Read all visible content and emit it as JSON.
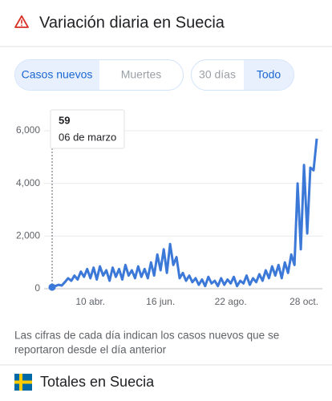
{
  "header": {
    "title": "Variación diaria en Suecia"
  },
  "tabs": {
    "metric": [
      "Casos nuevos",
      "Muertes"
    ],
    "range": [
      "30 días",
      "Todo"
    ]
  },
  "chart_data": {
    "type": "line",
    "categories": [
      "06 de marzo",
      null,
      null,
      null,
      null,
      null,
      null,
      null,
      null,
      null,
      null,
      null,
      "10 abr.",
      null,
      null,
      null,
      null,
      null,
      null,
      null,
      null,
      null,
      null,
      null,
      null,
      null,
      null,
      null,
      null,
      null,
      null,
      null,
      null,
      null,
      "16 jun.",
      null,
      null,
      null,
      null,
      null,
      null,
      null,
      null,
      null,
      null,
      null,
      null,
      null,
      null,
      null,
      null,
      null,
      null,
      null,
      null,
      null,
      "22 ago.",
      null,
      null,
      null,
      null,
      null,
      null,
      null,
      null,
      null,
      null,
      null,
      null,
      null,
      null,
      null,
      null,
      null,
      null,
      null,
      null,
      null,
      null,
      "28 oct.",
      null,
      null,
      null,
      null
    ],
    "series": [
      {
        "name": "Casos nuevos",
        "color": "#3c78d8",
        "values": [
          59,
          100,
          150,
          120,
          250,
          400,
          300,
          500,
          350,
          650,
          450,
          750,
          400,
          800,
          350,
          850,
          500,
          700,
          300,
          800,
          450,
          750,
          350,
          900,
          500,
          700,
          400,
          850,
          450,
          750,
          400,
          1000,
          500,
          1300,
          700,
          1500,
          600,
          1700,
          900,
          1200,
          400,
          600,
          300,
          500,
          250,
          400,
          150,
          350,
          100,
          450,
          200,
          300,
          100,
          400,
          150,
          350,
          200,
          450,
          100,
          300,
          200,
          500,
          150,
          400,
          250,
          550,
          300,
          700,
          400,
          850,
          500,
          900,
          400,
          1000,
          600,
          1300,
          900,
          4000,
          1500,
          4700,
          2100,
          4600,
          4500,
          5700
        ]
      }
    ],
    "ylim": [
      0,
      6000
    ],
    "yticks": [
      0,
      {
        "value": 2000,
        "label": "2,000"
      },
      {
        "value": 4000,
        "label": "4,000"
      },
      {
        "value": 6000,
        "label": "6,000"
      }
    ],
    "grid": true
  },
  "footnote": [
    "Las cifras de cada día indican los casos nuevos que se",
    "reportaron desde el día anterior"
  ],
  "footer": {
    "title": "Totales en Suecia"
  }
}
